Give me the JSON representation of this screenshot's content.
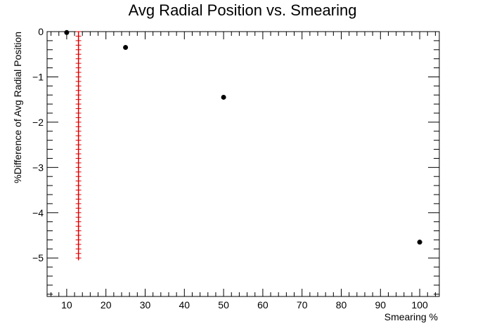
{
  "chart_data": {
    "type": "scatter",
    "title": "Avg Radial Position vs. Smearing",
    "xlabel": "Smearing %",
    "ylabel": "%Difference of Avg Radial Position",
    "xlim": [
      5,
      105
    ],
    "ylim": [
      -5.85,
      0
    ],
    "x_ticks": [
      10,
      20,
      30,
      40,
      50,
      60,
      70,
      80,
      90,
      100
    ],
    "y_ticks": [
      0,
      -1,
      -2,
      -3,
      -4,
      -5
    ],
    "x_tick_labels": [
      "10",
      "20",
      "30",
      "40",
      "50",
      "60",
      "70",
      "80",
      "90",
      "100"
    ],
    "y_tick_labels": [
      "0",
      "−1",
      "−2",
      "−3",
      "−4",
      "−5"
    ],
    "grid": false,
    "series": [
      {
        "points": [
          {
            "x": 10,
            "y": -0.02
          },
          {
            "x": 25,
            "y": -0.35
          },
          {
            "x": 50,
            "y": -1.45
          },
          {
            "x": 100,
            "y": -4.65
          }
        ],
        "color": "#000000",
        "marker": "circle"
      },
      {
        "x": 13,
        "y_range": [
          -5.05,
          0
        ],
        "y_step": 0.1,
        "color": "#dd0000",
        "marker": "cross"
      }
    ]
  }
}
